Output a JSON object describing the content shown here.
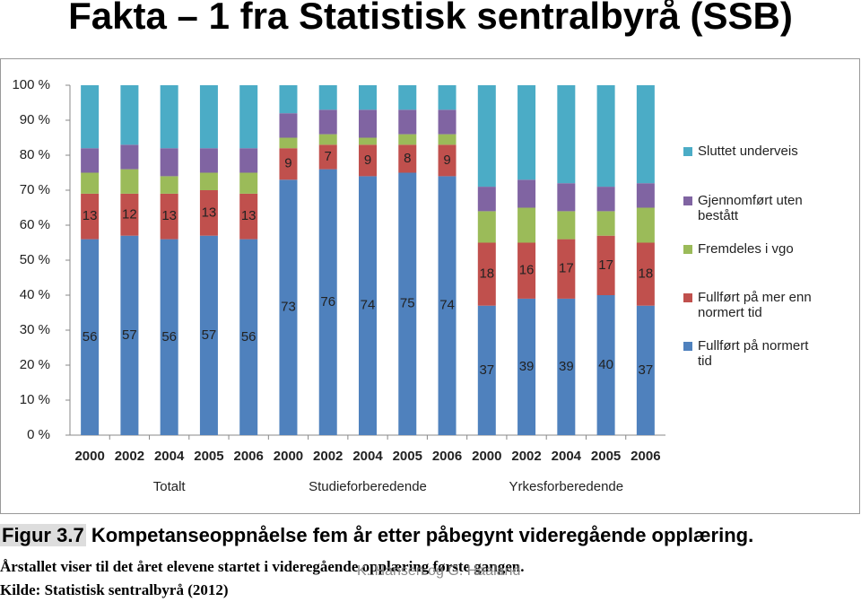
{
  "title": "Fakta – 1 fra Statistisk sentralbyrå (SSB)",
  "chart_data": {
    "type": "stacked-bar",
    "categories": [
      "2000",
      "2002",
      "2004",
      "2005",
      "2006",
      "2000",
      "2002",
      "2004",
      "2005",
      "2006",
      "2000",
      "2002",
      "2004",
      "2005",
      "2006"
    ],
    "groups": [
      "Totalt",
      "Studieforberedende",
      "Yrkesforberedende"
    ],
    "series": [
      {
        "name": "Fullført på normert tid",
        "color": "#4f81bd",
        "show_labels": true,
        "values": [
          56,
          57,
          56,
          57,
          56,
          73,
          76,
          74,
          75,
          74,
          37,
          39,
          39,
          40,
          37
        ]
      },
      {
        "name": "Fullført på mer enn normert tid",
        "color": "#c0504d",
        "show_labels": true,
        "values": [
          13,
          12,
          13,
          13,
          13,
          9,
          7,
          9,
          8,
          9,
          18,
          16,
          17,
          17,
          18
        ]
      },
      {
        "name": "Fremdeles i vgo",
        "color": "#9bbb59",
        "show_labels": false,
        "values": [
          6,
          7,
          5,
          5,
          6,
          3,
          3,
          2,
          3,
          3,
          9,
          10,
          8,
          7,
          10
        ]
      },
      {
        "name": "Gjennomført uten bestått",
        "color": "#8064a2",
        "show_labels": false,
        "values": [
          7,
          7,
          8,
          7,
          7,
          7,
          7,
          8,
          7,
          7,
          7,
          8,
          8,
          7,
          7
        ]
      },
      {
        "name": "Sluttet underveis",
        "color": "#4bacc6",
        "show_labels": false,
        "values": [
          18,
          17,
          18,
          18,
          18,
          8,
          7,
          7,
          7,
          7,
          29,
          27,
          28,
          29,
          28
        ]
      }
    ],
    "ylim": [
      0,
      100
    ],
    "yticks": [
      {
        "value": 0,
        "label": "0 %"
      },
      {
        "value": 10,
        "label": "10 %"
      },
      {
        "value": 20,
        "label": "20 %"
      },
      {
        "value": 30,
        "label": "30 %"
      },
      {
        "value": 40,
        "label": "40 %"
      },
      {
        "value": 50,
        "label": "50 %"
      },
      {
        "value": 60,
        "label": "60 %"
      },
      {
        "value": 70,
        "label": "70 %"
      },
      {
        "value": 80,
        "label": "80 %"
      },
      {
        "value": 90,
        "label": "90 %"
      },
      {
        "value": 100,
        "label": "100 %"
      }
    ],
    "grid": false
  },
  "caption": {
    "figure": "Figur 3.7",
    "heading": "Kompetanseoppnåelse fem år etter påbegynt videregående opplæring.",
    "note": "Årstallet viser til det året elevene startet i videregående opplæring første gangen.",
    "source": "Kilde: Statistisk sentralbyrå (2012)"
  },
  "footer": "K. Hansen og G. Haaland"
}
